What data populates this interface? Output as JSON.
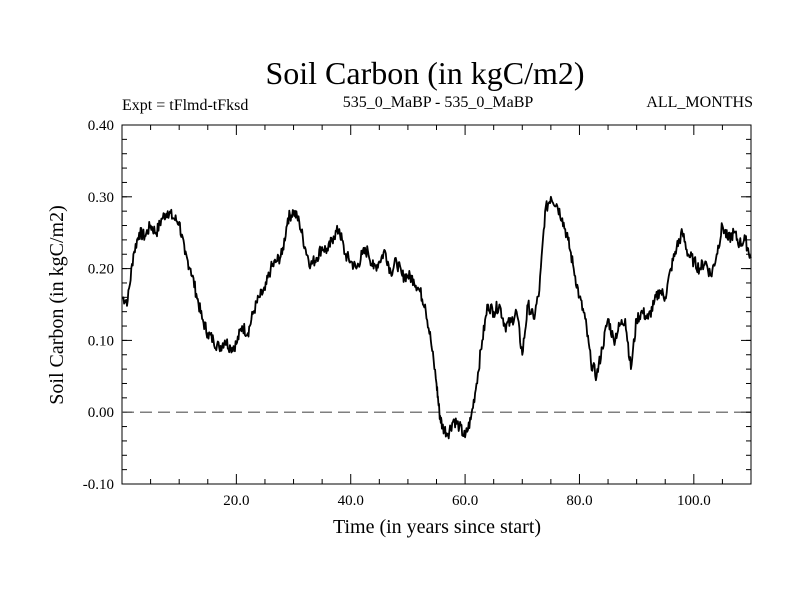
{
  "chart_data": {
    "type": "line",
    "title": "Soil Carbon (in kgC/m2)",
    "subtitle_left": "Expt = tFlmd-tFksd",
    "subtitle_center": "535_0_MaBP - 535_0_MaBP",
    "subtitle_right": "ALL_MONTHS",
    "xlabel": "Time (in years since start)",
    "ylabel": "Soil Carbon (in kgC/m2)",
    "xlim": [
      0,
      110
    ],
    "ylim": [
      -0.1,
      0.4
    ],
    "x_ticks": [
      20,
      40,
      60,
      80,
      100
    ],
    "x_tick_labels": [
      "20.0",
      "40.0",
      "60.0",
      "80.0",
      "100.0"
    ],
    "y_ticks": [
      -0.1,
      0.0,
      0.1,
      0.2,
      0.3,
      0.4
    ],
    "y_tick_labels": [
      "-0.10",
      "0.00",
      "0.10",
      "0.20",
      "0.30",
      "0.40"
    ],
    "reference_line": {
      "y": 0.0,
      "style": "dashed"
    },
    "series": [
      {
        "name": "soil-carbon",
        "x": [
          0.0,
          1.0,
          2.0,
          3.0,
          4.0,
          5.0,
          6.0,
          7.0,
          8.0,
          9.0,
          10.0,
          11.0,
          12.0,
          13.0,
          14.0,
          15.0,
          16.0,
          17.0,
          18.0,
          19.0,
          20.0,
          21.0,
          22.0,
          23.0,
          24.0,
          25.0,
          26.0,
          27.0,
          28.0,
          29.0,
          30.0,
          31.0,
          32.0,
          33.0,
          34.0,
          35.0,
          36.0,
          37.0,
          38.0,
          39.0,
          40.0,
          41.0,
          42.0,
          43.0,
          44.0,
          45.0,
          46.0,
          47.0,
          48.0,
          49.0,
          50.0,
          51.0,
          52.0,
          53.0,
          54.0,
          55.0,
          55.5,
          56.0,
          57.0,
          58.0,
          59.0,
          60.0,
          61.0,
          62.0,
          63.0,
          64.0,
          65.0,
          66.0,
          67.0,
          68.0,
          69.0,
          70.0,
          71.0,
          72.0,
          73.0,
          74.0,
          75.0,
          76.0,
          77.0,
          78.0,
          79.0,
          80.0,
          81.0,
          82.0,
          83.0,
          84.0,
          85.0,
          86.0,
          87.0,
          88.0,
          89.0,
          90.0,
          91.0,
          92.0,
          93.0,
          94.0,
          95.0,
          96.0,
          97.0,
          98.0,
          99.0,
          100.0,
          101.0,
          102.0,
          103.0,
          104.0,
          105.0,
          106.0,
          107.0,
          108.0,
          109.0,
          110.0
        ],
        "values": [
          0.16,
          0.155,
          0.22,
          0.25,
          0.245,
          0.26,
          0.25,
          0.27,
          0.28,
          0.27,
          0.265,
          0.22,
          0.2,
          0.165,
          0.13,
          0.11,
          0.1,
          0.09,
          0.1,
          0.09,
          0.095,
          0.12,
          0.11,
          0.14,
          0.16,
          0.17,
          0.2,
          0.21,
          0.22,
          0.27,
          0.28,
          0.265,
          0.23,
          0.205,
          0.215,
          0.23,
          0.225,
          0.245,
          0.255,
          0.22,
          0.21,
          0.2,
          0.22,
          0.225,
          0.2,
          0.21,
          0.225,
          0.195,
          0.21,
          0.19,
          0.19,
          0.185,
          0.17,
          0.15,
          0.1,
          0.04,
          0.0,
          -0.02,
          -0.03,
          -0.01,
          -0.02,
          -0.035,
          -0.01,
          0.04,
          0.1,
          0.15,
          0.14,
          0.15,
          0.12,
          0.125,
          0.14,
          0.08,
          0.15,
          0.13,
          0.17,
          0.28,
          0.3,
          0.29,
          0.27,
          0.24,
          0.2,
          0.16,
          0.13,
          0.07,
          0.05,
          0.09,
          0.13,
          0.1,
          0.12,
          0.13,
          0.06,
          0.13,
          0.14,
          0.13,
          0.15,
          0.17,
          0.16,
          0.2,
          0.23,
          0.25,
          0.22,
          0.21,
          0.2,
          0.21,
          0.19,
          0.22,
          0.26,
          0.24,
          0.25,
          0.235,
          0.24,
          0.215
        ]
      }
    ]
  }
}
